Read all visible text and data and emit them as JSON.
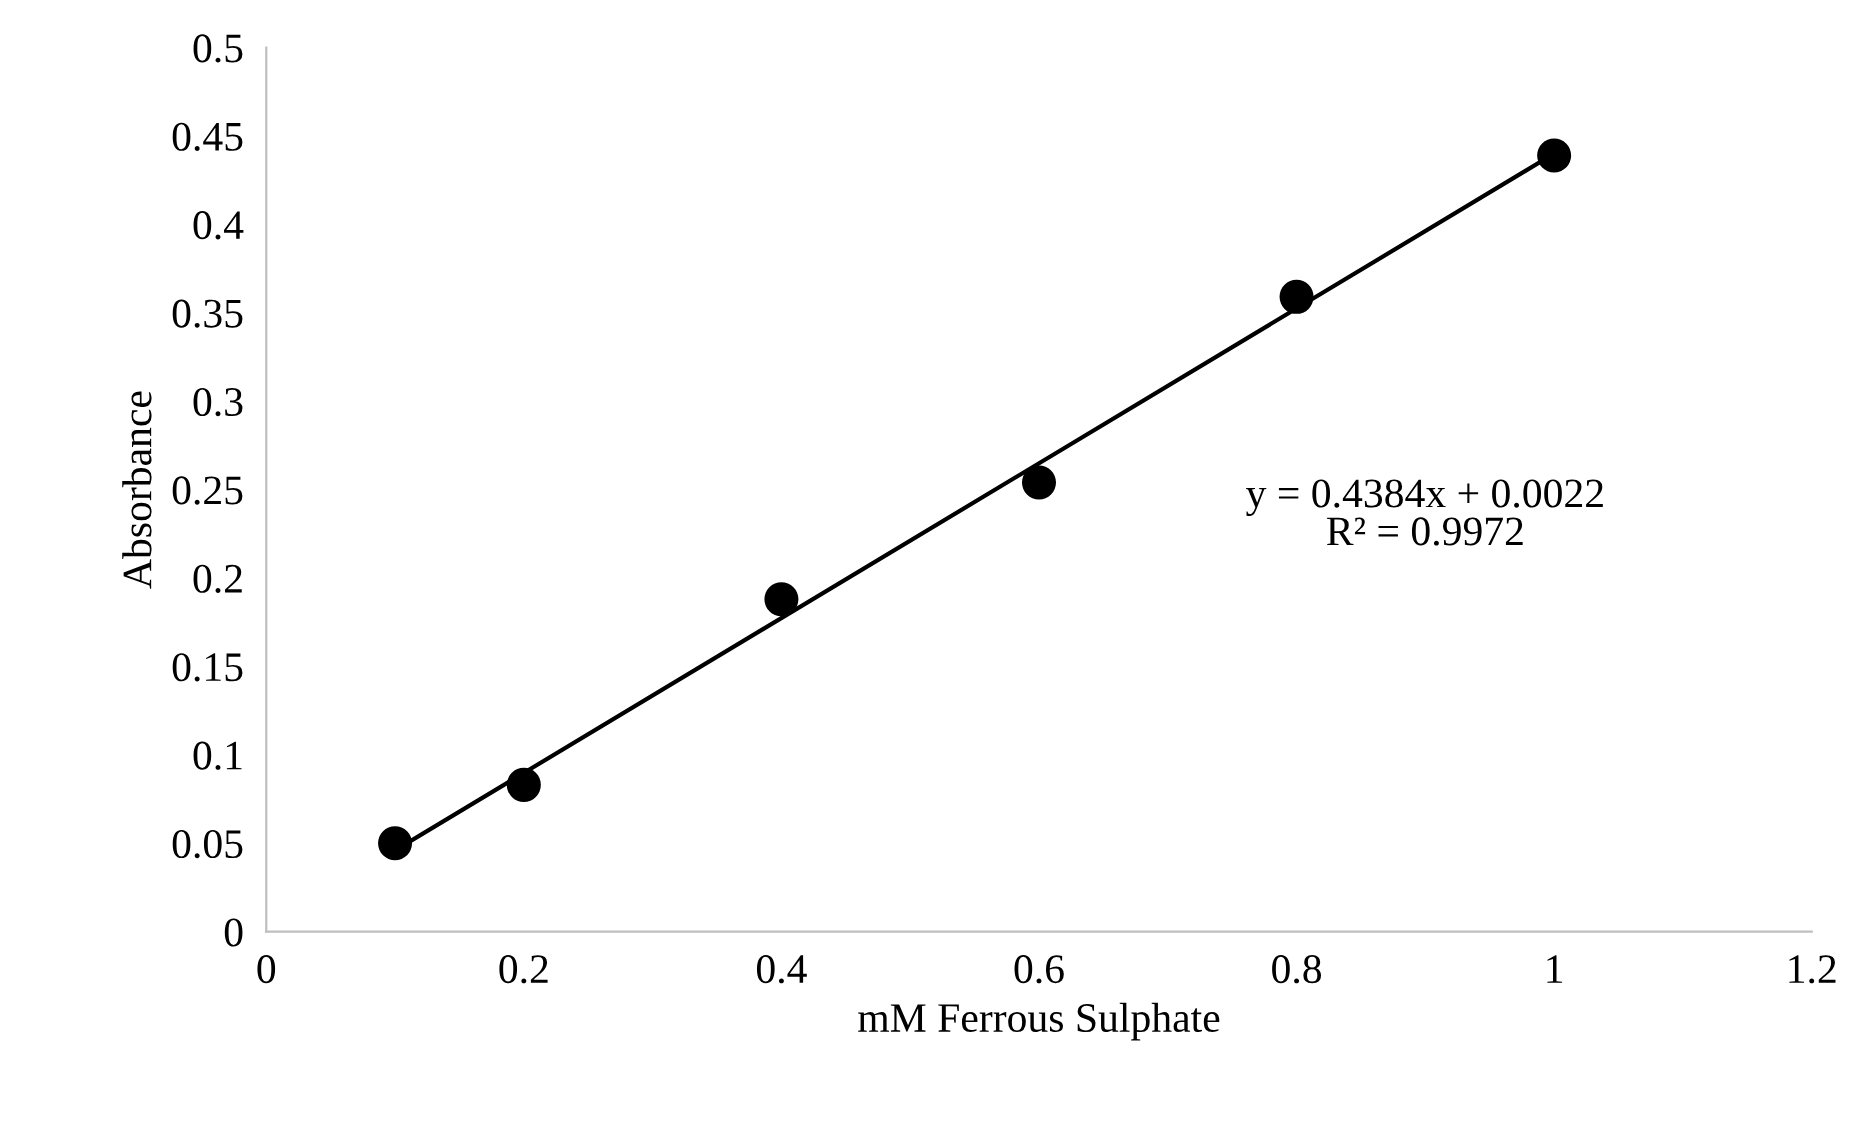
{
  "chart_data": {
    "type": "scatter",
    "xlabel": "mM Ferrous Sulphate",
    "ylabel": "Absorbance",
    "series": [
      {
        "color": "#000000",
        "marker": "circle",
        "x": [
          0.1,
          0.2,
          0.4,
          0.6,
          0.8,
          1.0
        ],
        "values": [
          0.05,
          0.083,
          0.188,
          0.254,
          0.359,
          0.439
        ]
      },
      {
        "type": "line",
        "color": "#000000",
        "line_style": "solid",
        "x": [
          0.1,
          1.0
        ],
        "values": [
          0.046,
          0.44
        ]
      }
    ],
    "xlim": [
      0,
      1.2
    ],
    "xticks": [
      0,
      0.2,
      0.4,
      0.6,
      0.8,
      1,
      1.2
    ],
    "ylim": [
      0,
      0.5
    ],
    "yticks": [
      0,
      0.05,
      0.1,
      0.15,
      0.2,
      0.25,
      0.3,
      0.35,
      0.4,
      0.45,
      0.5
    ],
    "grid": false,
    "legend": false,
    "annotations": [
      "y = 0.4384x + 0.0022\nR² = 0.9972"
    ]
  }
}
